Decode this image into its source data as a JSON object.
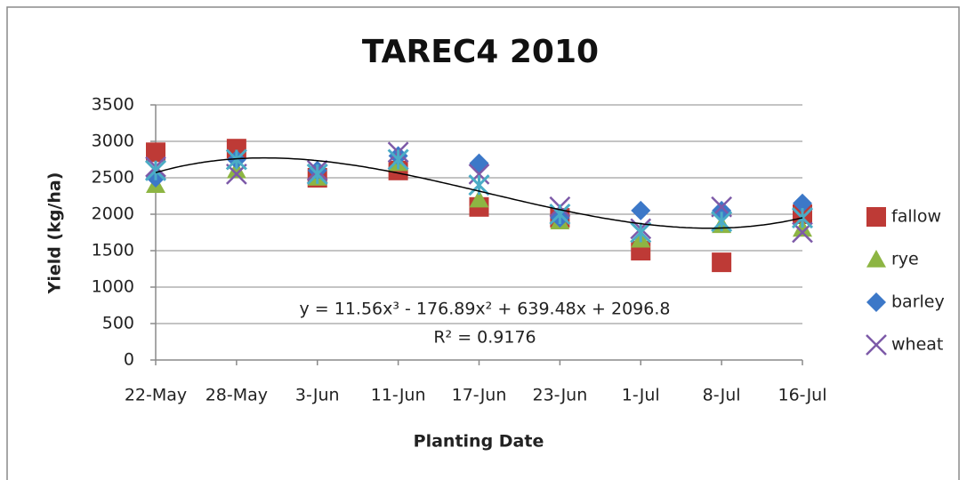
{
  "chart_data": {
    "type": "scatter",
    "title": "TAREC4 2010",
    "x_label": "Planting Date",
    "y_label": "Yield (kg/ha)",
    "categories": [
      "22-May",
      "28-May",
      "3-Jun",
      "11-Jun",
      "17-Jun",
      "23-Jun",
      "1-Jul",
      "8-Jul",
      "16-Jul"
    ],
    "series": [
      {
        "name": "fallow",
        "color": "#be3a36",
        "marker": "square",
        "values": [
          2850,
          2900,
          2500,
          2600,
          2100,
          1950,
          1500,
          1340,
          2000
        ]
      },
      {
        "name": "rye",
        "color": "#8db543",
        "marker": "triangle",
        "values": [
          2400,
          2600,
          2500,
          2700,
          2200,
          1900,
          1650,
          1850,
          1800
        ]
      },
      {
        "name": "barley",
        "color": "#3c78c8",
        "marker": "diamond",
        "values": [
          2500,
          2750,
          2600,
          2800,
          2700,
          1950,
          2050,
          2050,
          2150
        ]
      },
      {
        "name": "wheat",
        "color": "#7d5aa8",
        "marker": "x",
        "values": [
          2650,
          2550,
          2600,
          2850,
          2550,
          2100,
          1800,
          2100,
          1750
        ]
      },
      {
        "color": "#4bacc6",
        "marker": "star",
        "values": [
          2600,
          2750,
          2550,
          2750,
          2400,
          2000,
          1750,
          1900,
          1950
        ]
      }
    ],
    "trendline": {
      "coefficients": [
        11.56,
        -176.89,
        639.48,
        2096.8
      ],
      "color": "#000000",
      "equation": "y = 11.56x³ - 176.89x² + 639.48x + 2096.8",
      "r_squared": "R² = 0.9176"
    },
    "ylim": [
      0,
      3500
    ],
    "yticks": [
      0,
      500,
      1000,
      1500,
      2000,
      2500,
      3000,
      3500
    ],
    "grid": true,
    "legend": "right"
  }
}
